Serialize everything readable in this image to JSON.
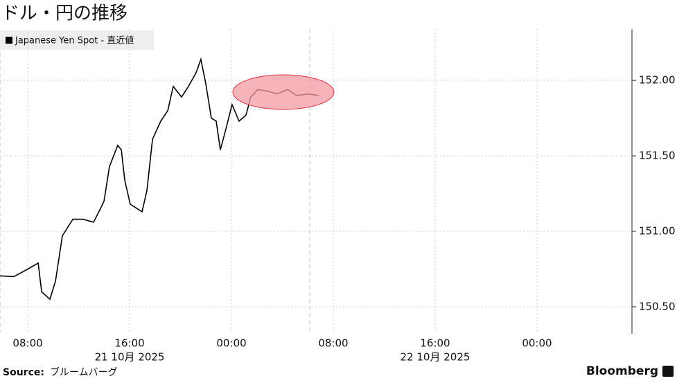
{
  "chart_data": {
    "type": "line",
    "title": "ドル・円の推移",
    "source_label": "Source:",
    "source": "ブルームバーグ",
    "brand": "Bloomberg",
    "x": [
      5.82,
      6.91,
      8,
      8.82,
      9.09,
      9.74,
      10.18,
      10.72,
      11.54,
      12.35,
      13.17,
      13.71,
      13.99,
      14.42,
      15.07,
      15.35,
      15.62,
      16.05,
      16.6,
      16.98,
      17.36,
      17.8,
      18.45,
      19,
      19.43,
      20.08,
      20.62,
      21.22,
      21.6,
      21.98,
      22.42,
      22.8,
      23.13,
      23.51,
      24.05,
      24.6,
      25.14,
      25.52,
      26.07,
      26.77,
      27.59,
      28.41,
      29.12,
      30.04,
      30.86
    ],
    "series": [
      {
        "name": "Japanese Yen Spot - 直近値",
        "color": "#000000",
        "values": [
          150.705,
          150.7,
          150.75,
          150.79,
          150.6,
          150.55,
          150.67,
          150.97,
          151.08,
          151.08,
          151.06,
          151.15,
          151.2,
          151.43,
          151.57,
          151.54,
          151.34,
          151.18,
          151.15,
          151.13,
          151.27,
          151.61,
          151.73,
          151.8,
          151.96,
          151.89,
          151.96,
          152.05,
          152.14,
          151.98,
          151.75,
          151.73,
          151.54,
          151.66,
          151.84,
          151.73,
          151.77,
          151.89,
          151.94,
          151.93,
          151.91,
          151.94,
          151.9,
          151.91,
          151.9
        ]
      }
    ],
    "xlim": [
      5.82,
      55.46
    ],
    "xticks": [
      {
        "value": 8,
        "label": "08:00"
      },
      {
        "value": 16,
        "label": "16:00",
        "date": "21 10月 2025"
      },
      {
        "value": 24,
        "label": "00:00"
      },
      {
        "value": 32,
        "label": "08:00"
      },
      {
        "value": 40,
        "label": "16:00",
        "date": "22 10月 2025"
      },
      {
        "value": 48,
        "label": "00:00"
      }
    ],
    "ylim": [
      150.33,
      152.34
    ],
    "yticks": [
      {
        "value": 150.5,
        "label": "150.50"
      },
      {
        "value": 151,
        "label": "151.00"
      },
      {
        "value": 151.5,
        "label": "151.50"
      },
      {
        "value": 152,
        "label": "152.00"
      }
    ],
    "grid": true
  }
}
